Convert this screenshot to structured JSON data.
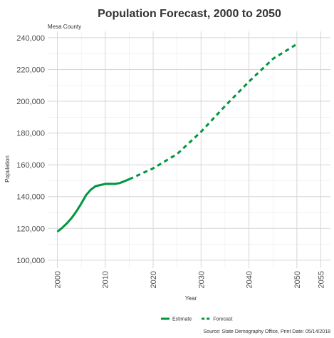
{
  "chart_data": {
    "type": "line",
    "title": "Population Forecast, 2000 to 2050",
    "subtitle": "Mesa County",
    "xlabel": "Year",
    "ylabel": "Population",
    "caption": "Source: State Demography Office, Print Date: 05/14/2018",
    "xlim": [
      1998,
      2057
    ],
    "ylim": [
      95000,
      244000
    ],
    "x_ticks": [
      2000,
      2010,
      2020,
      2030,
      2040,
      2050,
      2055
    ],
    "y_ticks": [
      100000,
      120000,
      140000,
      160000,
      180000,
      200000,
      220000,
      240000
    ],
    "y_tick_labels": [
      "100,000",
      "120,000",
      "140,000",
      "160,000",
      "180,000",
      "200,000",
      "220,000",
      "240,000"
    ],
    "x_minor_ticks": [
      2005,
      2015,
      2025,
      2035,
      2045
    ],
    "grid": true,
    "legend_position": "bottom",
    "series": [
      {
        "name": "Estimate",
        "style": "solid",
        "color": "#00963f",
        "x": [
          2000,
          2001,
          2002,
          2003,
          2004,
          2005,
          2006,
          2007,
          2008,
          2009,
          2010,
          2011,
          2012,
          2013,
          2014,
          2015
        ],
        "values": [
          117900,
          120300,
          123200,
          126600,
          130800,
          135600,
          140900,
          144400,
          146600,
          147300,
          148000,
          148100,
          148000,
          148500,
          149700,
          150900
        ]
      },
      {
        "name": "Forecast",
        "style": "dashed",
        "color": "#00963f",
        "x": [
          2015,
          2020,
          2025,
          2030,
          2035,
          2040,
          2045,
          2050
        ],
        "values": [
          150900,
          157800,
          166800,
          180800,
          197000,
          212400,
          226700,
          236000
        ]
      }
    ]
  }
}
